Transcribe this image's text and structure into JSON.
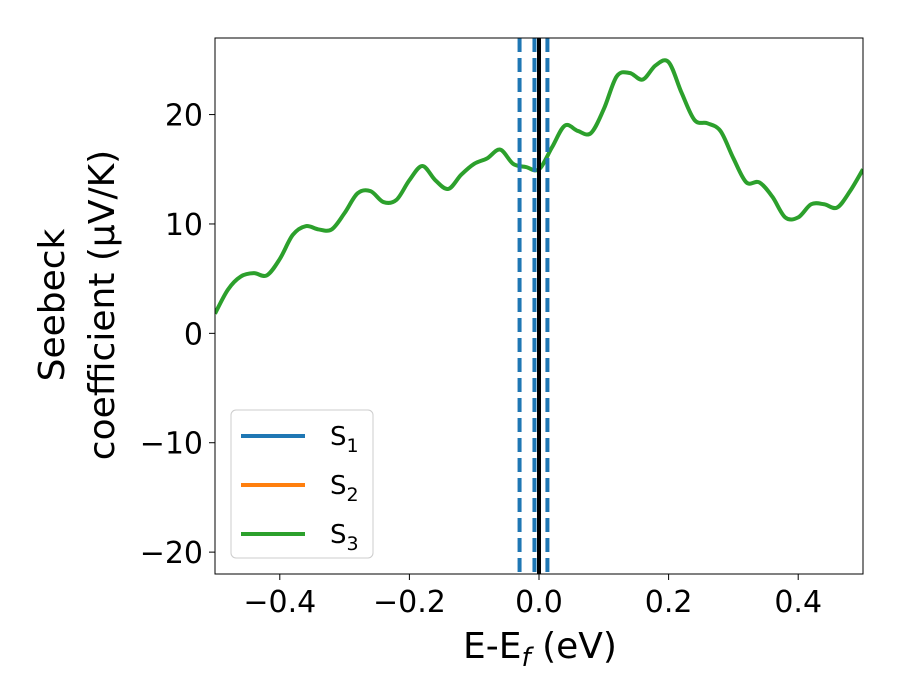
{
  "chart_data": {
    "type": "line",
    "title": "",
    "xlabel_main": "E-E",
    "xlabel_sub": "f",
    "xlabel_tail": " (eV)",
    "ylabel_line1": "Seebeck",
    "ylabel_line2": "coefficient  (μV/K)",
    "xlim": [
      -0.5,
      0.5
    ],
    "ylim": [
      -22,
      27
    ],
    "xticks": [
      -0.4,
      -0.2,
      0.0,
      0.2,
      0.4
    ],
    "xtick_labels": [
      "−0.4",
      "−0.2",
      "0.0",
      "0.2",
      "0.4"
    ],
    "yticks": [
      -20,
      -10,
      0,
      10,
      20
    ],
    "ytick_labels": [
      "−20",
      "−10",
      "0",
      "10",
      "20"
    ],
    "grid": false,
    "legend_position": "lower-left",
    "series": [
      {
        "name": "S",
        "sub": "1",
        "color": "#1f77b4",
        "x": [],
        "y": []
      },
      {
        "name": "S",
        "sub": "2",
        "color": "#ff7f0e",
        "x": [],
        "y": []
      },
      {
        "name": "S",
        "sub": "3",
        "color": "#2ca02c",
        "x": [
          -0.5,
          -0.48,
          -0.46,
          -0.44,
          -0.42,
          -0.4,
          -0.38,
          -0.36,
          -0.34,
          -0.32,
          -0.3,
          -0.28,
          -0.26,
          -0.24,
          -0.22,
          -0.2,
          -0.18,
          -0.16,
          -0.14,
          -0.12,
          -0.1,
          -0.08,
          -0.06,
          -0.04,
          -0.02,
          0.0,
          0.02,
          0.04,
          0.06,
          0.08,
          0.1,
          0.12,
          0.14,
          0.16,
          0.18,
          0.2,
          0.22,
          0.24,
          0.26,
          0.28,
          0.3,
          0.32,
          0.34,
          0.36,
          0.38,
          0.4,
          0.42,
          0.44,
          0.46,
          0.48,
          0.5
        ],
        "y": [
          1.8,
          4.0,
          5.2,
          5.5,
          5.3,
          6.8,
          9.0,
          9.8,
          9.5,
          9.5,
          11.0,
          12.8,
          13.0,
          12.0,
          12.2,
          14.0,
          15.3,
          14.0,
          13.2,
          14.5,
          15.5,
          16.0,
          16.8,
          15.5,
          15.2,
          15.0,
          17.0,
          19.0,
          18.5,
          18.3,
          20.5,
          23.5,
          23.8,
          23.2,
          24.5,
          24.8,
          22.0,
          19.5,
          19.2,
          18.5,
          16.0,
          13.8,
          13.8,
          12.5,
          10.6,
          10.6,
          11.8,
          11.8,
          11.5,
          13.0,
          15.0
        ]
      }
    ],
    "vlines": [
      {
        "x": 0.0,
        "style": "solid",
        "color": "#000000"
      },
      {
        "x": -0.03,
        "style": "dashed",
        "color": "#1f77b4"
      },
      {
        "x": -0.007,
        "style": "dashed",
        "color": "#1f77b4"
      },
      {
        "x": 0.013,
        "style": "dashed",
        "color": "#1f77b4"
      }
    ]
  }
}
